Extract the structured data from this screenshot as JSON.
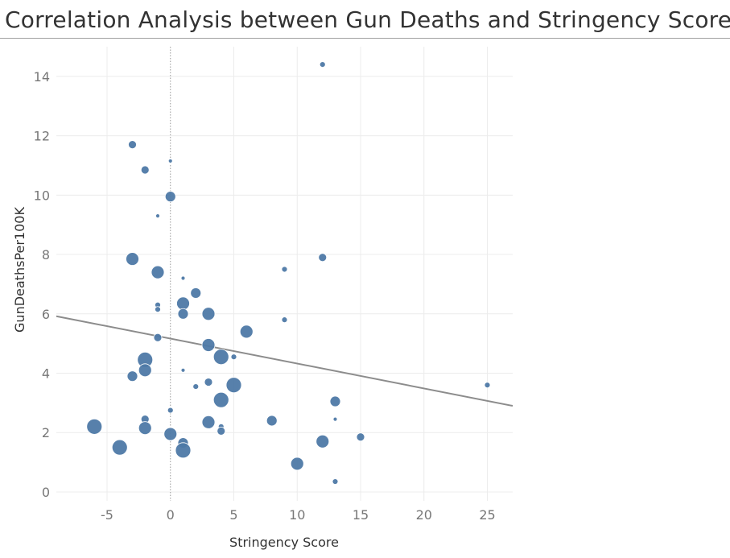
{
  "title": "Correlation Analysis between Gun Deaths and Stringency Score",
  "chart_data": {
    "type": "scatter",
    "title": "Correlation Analysis between Gun Deaths and Stringency Score",
    "xlabel": "Stringency Score",
    "ylabel": "GunDeathsPer100K",
    "xlim": [
      -9,
      27
    ],
    "ylim": [
      -0.3,
      15
    ],
    "x_ticks": [
      "-5",
      "0",
      "5",
      "10",
      "15",
      "20",
      "25"
    ],
    "y_ticks": [
      "0",
      "2",
      "4",
      "6",
      "8",
      "10",
      "12",
      "14"
    ],
    "grid": true,
    "zero_line": true,
    "marker_color": "#4e79a7",
    "trend_color": "#8c8c8c",
    "trend_line": {
      "x": [
        -9,
        27
      ],
      "y": [
        5.92,
        2.9
      ]
    },
    "points": [
      {
        "x": 12,
        "y": 14.4,
        "s": 1
      },
      {
        "x": -3,
        "y": 11.7,
        "s": 2
      },
      {
        "x": 0,
        "y": 11.15,
        "s": 0
      },
      {
        "x": -2,
        "y": 10.85,
        "s": 2
      },
      {
        "x": 0,
        "y": 9.95,
        "s": 3
      },
      {
        "x": -1,
        "y": 9.3,
        "s": 0
      },
      {
        "x": -3,
        "y": 7.85,
        "s": 4
      },
      {
        "x": 12,
        "y": 7.9,
        "s": 2
      },
      {
        "x": -1,
        "y": 7.4,
        "s": 4
      },
      {
        "x": 9,
        "y": 7.5,
        "s": 1
      },
      {
        "x": 1,
        "y": 7.2,
        "s": 0
      },
      {
        "x": 2,
        "y": 6.7,
        "s": 3
      },
      {
        "x": -1,
        "y": 6.3,
        "s": 1
      },
      {
        "x": 1,
        "y": 6.35,
        "s": 4
      },
      {
        "x": -1,
        "y": 6.15,
        "s": 1
      },
      {
        "x": 1,
        "y": 6.0,
        "s": 3
      },
      {
        "x": 3,
        "y": 6.0,
        "s": 4
      },
      {
        "x": 9,
        "y": 5.8,
        "s": 1
      },
      {
        "x": 6,
        "y": 5.4,
        "s": 4
      },
      {
        "x": -1,
        "y": 5.2,
        "s": 2
      },
      {
        "x": 3,
        "y": 4.95,
        "s": 4
      },
      {
        "x": 4,
        "y": 4.55,
        "s": 5
      },
      {
        "x": 5,
        "y": 4.55,
        "s": 1
      },
      {
        "x": -2,
        "y": 4.45,
        "s": 5
      },
      {
        "x": -2,
        "y": 4.1,
        "s": 4
      },
      {
        "x": 1,
        "y": 4.1,
        "s": 0
      },
      {
        "x": -3,
        "y": 3.9,
        "s": 3
      },
      {
        "x": 3,
        "y": 3.7,
        "s": 2
      },
      {
        "x": 5,
        "y": 3.6,
        "s": 5
      },
      {
        "x": 25,
        "y": 3.6,
        "s": 1
      },
      {
        "x": 2,
        "y": 3.55,
        "s": 1
      },
      {
        "x": 4,
        "y": 3.1,
        "s": 5
      },
      {
        "x": 13,
        "y": 3.05,
        "s": 3
      },
      {
        "x": 0,
        "y": 2.75,
        "s": 1
      },
      {
        "x": -2,
        "y": 2.45,
        "s": 2
      },
      {
        "x": 8,
        "y": 2.4,
        "s": 3
      },
      {
        "x": 13,
        "y": 2.45,
        "s": 0
      },
      {
        "x": 3,
        "y": 2.35,
        "s": 4
      },
      {
        "x": 4,
        "y": 2.2,
        "s": 1
      },
      {
        "x": -6,
        "y": 2.2,
        "s": 5
      },
      {
        "x": -2,
        "y": 2.15,
        "s": 4
      },
      {
        "x": 4,
        "y": 2.05,
        "s": 2
      },
      {
        "x": 0,
        "y": 1.95,
        "s": 4
      },
      {
        "x": 15,
        "y": 1.85,
        "s": 2
      },
      {
        "x": 12,
        "y": 1.7,
        "s": 4
      },
      {
        "x": 1,
        "y": 1.65,
        "s": 3
      },
      {
        "x": -4,
        "y": 1.5,
        "s": 5
      },
      {
        "x": 1,
        "y": 1.4,
        "s": 5
      },
      {
        "x": 10,
        "y": 0.95,
        "s": 4
      },
      {
        "x": 13,
        "y": 0.35,
        "s": 1
      }
    ]
  }
}
